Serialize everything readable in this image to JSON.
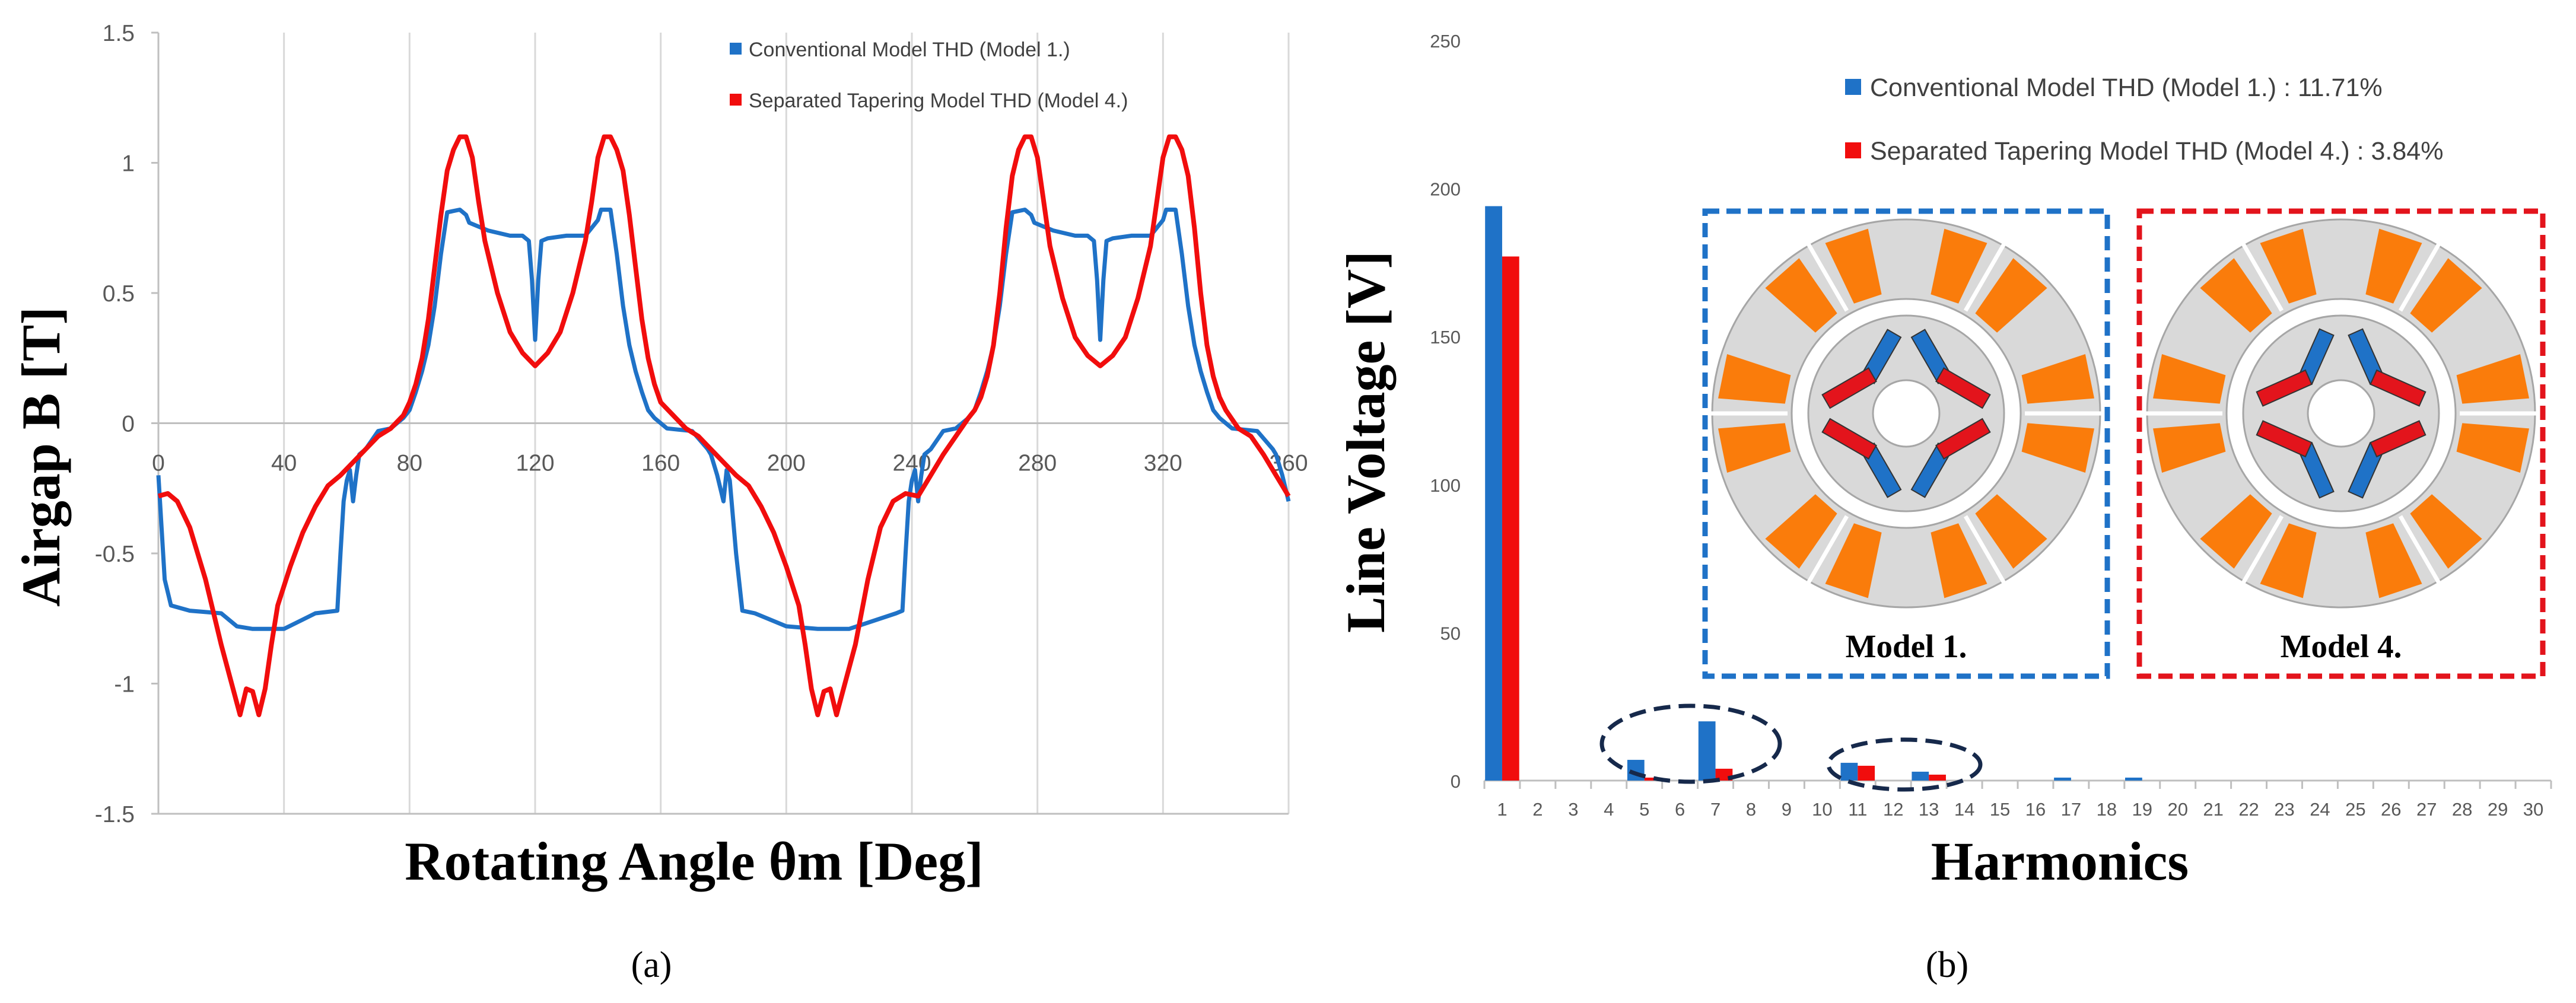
{
  "colors": {
    "model1": "#1f72c7",
    "model4": "#f10d0d",
    "grid": "#d9d9d9",
    "axis": "#bfbfbf",
    "stator": "#d9d9d9",
    "rotor": "#d9d9d9",
    "coil": "#fa7c0b",
    "magnet_blue": "#1f72c7",
    "magnet_red": "#e3141c",
    "dash_blue": "#1f72c7",
    "dash_red": "#e3141c",
    "ellipse": "#16294b"
  },
  "panel_a_label": "(a)",
  "panel_b_label": "(b)",
  "chart_data": [
    {
      "type": "line",
      "xlabel": "Rotating Angle θm [Deg]",
      "ylabel": "Airgap B [T]",
      "xlim": [
        0,
        360
      ],
      "ylim": [
        -1.5,
        1.5
      ],
      "xticks": [
        "0",
        "40",
        "80",
        "120",
        "160",
        "200",
        "240",
        "280",
        "320",
        "360"
      ],
      "yticks": [
        "1.5",
        "1",
        "0.5",
        "0",
        "-0.5",
        "-1",
        "-1.5"
      ],
      "grid": "vertical",
      "legend_position": "top-right",
      "series": [
        {
          "name": "Conventional Model THD (Model 1.)",
          "color": "#1f72c7",
          "x": [
            0,
            2,
            4,
            10,
            20,
            25,
            30,
            40,
            50,
            57,
            58,
            59,
            60,
            61,
            62,
            63,
            64,
            66,
            70,
            74,
            78,
            80,
            82,
            84,
            86,
            88,
            90,
            92,
            96,
            98,
            99,
            105,
            112,
            116,
            118,
            119,
            120,
            121,
            122,
            124,
            130,
            136,
            140,
            141,
            144,
            146,
            148,
            150,
            152,
            154,
            156,
            158,
            162,
            170,
            175,
            176,
            178,
            180,
            181,
            182,
            184,
            186,
            190,
            200,
            210,
            220,
            235,
            237,
            238,
            239,
            240,
            241,
            242,
            243,
            244,
            246,
            250,
            254,
            258,
            260,
            262,
            264,
            266,
            268,
            270,
            272,
            276,
            278,
            279,
            285,
            292,
            296,
            298,
            299,
            300,
            301,
            302,
            304,
            310,
            316,
            320,
            321,
            324,
            326,
            328,
            330,
            332,
            334,
            336,
            338,
            342,
            350,
            355,
            356,
            358,
            360
          ],
          "y": [
            -0.2,
            -0.6,
            -0.7,
            -0.72,
            -0.73,
            -0.78,
            -0.79,
            -0.79,
            -0.73,
            -0.72,
            -0.5,
            -0.3,
            -0.22,
            -0.18,
            -0.3,
            -0.2,
            -0.12,
            -0.1,
            -0.03,
            -0.02,
            0.02,
            0.05,
            0.12,
            0.2,
            0.3,
            0.45,
            0.65,
            0.81,
            0.82,
            0.8,
            0.77,
            0.74,
            0.72,
            0.72,
            0.7,
            0.55,
            0.32,
            0.55,
            0.7,
            0.71,
            0.72,
            0.72,
            0.78,
            0.82,
            0.82,
            0.65,
            0.45,
            0.3,
            0.2,
            0.12,
            0.05,
            0.02,
            -0.02,
            -0.03,
            -0.1,
            -0.12,
            -0.2,
            -0.3,
            -0.18,
            -0.22,
            -0.5,
            -0.72,
            -0.73,
            -0.78,
            -0.79,
            -0.79,
            -0.73,
            -0.72,
            -0.5,
            -0.3,
            -0.22,
            -0.18,
            -0.3,
            -0.2,
            -0.12,
            -0.1,
            -0.03,
            -0.02,
            0.02,
            0.05,
            0.12,
            0.2,
            0.3,
            0.45,
            0.65,
            0.81,
            0.82,
            0.8,
            0.77,
            0.74,
            0.72,
            0.72,
            0.7,
            0.55,
            0.32,
            0.55,
            0.7,
            0.71,
            0.72,
            0.72,
            0.78,
            0.82,
            0.82,
            0.65,
            0.45,
            0.3,
            0.2,
            0.12,
            0.05,
            0.02,
            -0.02,
            -0.03,
            -0.1,
            -0.12,
            -0.2,
            -0.3
          ]
        },
        {
          "name": "Separated Tapering Model THD (Model 4.)",
          "color": "#f10d0d",
          "x": [
            0,
            3,
            6,
            10,
            15,
            20,
            24,
            26,
            28,
            30,
            32,
            34,
            36,
            38,
            42,
            46,
            50,
            54,
            58,
            62,
            66,
            70,
            74,
            78,
            80,
            82,
            84,
            86,
            88,
            90,
            92,
            94,
            96,
            98,
            100,
            102,
            104,
            108,
            112,
            116,
            120,
            124,
            128,
            132,
            136,
            138,
            140,
            142,
            144,
            146,
            148,
            150,
            152,
            154,
            156,
            158,
            160,
            164,
            168,
            172,
            176,
            180,
            184,
            188,
            192,
            196,
            200,
            204,
            206,
            208,
            210,
            212,
            214,
            216,
            218,
            222,
            226,
            230,
            234,
            238,
            242,
            246,
            250,
            254,
            258,
            260,
            262,
            264,
            266,
            268,
            270,
            272,
            274,
            276,
            278,
            280,
            282,
            284,
            288,
            292,
            296,
            300,
            304,
            308,
            312,
            316,
            318,
            320,
            322,
            324,
            326,
            328,
            330,
            332,
            334,
            336,
            338,
            340,
            344,
            348,
            352,
            356,
            360
          ],
          "y": [
            -0.28,
            -0.27,
            -0.3,
            -0.4,
            -0.6,
            -0.85,
            -1.03,
            -1.12,
            -1.02,
            -1.03,
            -1.12,
            -1.02,
            -0.85,
            -0.7,
            -0.55,
            -0.42,
            -0.32,
            -0.24,
            -0.2,
            -0.15,
            -0.1,
            -0.05,
            -0.02,
            0.03,
            0.08,
            0.15,
            0.25,
            0.4,
            0.6,
            0.8,
            0.97,
            1.05,
            1.1,
            1.1,
            1.02,
            0.85,
            0.7,
            0.5,
            0.35,
            0.27,
            0.22,
            0.27,
            0.35,
            0.5,
            0.7,
            0.85,
            1.02,
            1.1,
            1.1,
            1.05,
            0.97,
            0.8,
            0.6,
            0.4,
            0.25,
            0.15,
            0.08,
            0.03,
            -0.02,
            -0.05,
            -0.1,
            -0.15,
            -0.2,
            -0.24,
            -0.32,
            -0.42,
            -0.55,
            -0.7,
            -0.85,
            -1.02,
            -1.12,
            -1.03,
            -1.02,
            -1.12,
            -1.03,
            -0.85,
            -0.6,
            -0.4,
            -0.3,
            -0.27,
            -0.28,
            -0.2,
            -0.12,
            -0.05,
            0.02,
            0.05,
            0.1,
            0.18,
            0.3,
            0.5,
            0.75,
            0.95,
            1.05,
            1.1,
            1.1,
            1.02,
            0.85,
            0.68,
            0.48,
            0.33,
            0.26,
            0.22,
            0.26,
            0.33,
            0.48,
            0.68,
            0.85,
            1.02,
            1.1,
            1.1,
            1.05,
            0.95,
            0.75,
            0.5,
            0.3,
            0.18,
            0.1,
            0.05,
            -0.02,
            -0.05,
            -0.12,
            -0.2,
            -0.28
          ]
        }
      ]
    },
    {
      "type": "bar",
      "xlabel": "Harmonics",
      "ylabel": "Line Voltage [V]",
      "ylim": [
        0,
        250
      ],
      "yticks": [
        "250",
        "200",
        "150",
        "100",
        "50",
        "0"
      ],
      "categories": [
        "1",
        "2",
        "3",
        "4",
        "5",
        "6",
        "7",
        "8",
        "9",
        "10",
        "11",
        "12",
        "13",
        "14",
        "15",
        "16",
        "17",
        "18",
        "19",
        "20",
        "21",
        "22",
        "23",
        "24",
        "25",
        "26",
        "27",
        "28",
        "29",
        "30"
      ],
      "grid": "none",
      "legend_position": "top-center",
      "series": [
        {
          "name": "Conventional Model THD (Model 1.) : 11.71%",
          "color": "#1f72c7",
          "values": [
            194,
            0,
            0,
            0,
            7,
            0,
            20,
            0,
            0,
            0,
            6,
            0,
            3,
            0,
            0,
            0,
            1,
            0,
            1,
            0,
            0,
            0,
            0,
            0,
            0,
            0,
            0,
            0,
            0,
            0
          ]
        },
        {
          "name": "Separated Tapering Model THD (Model 4.) : 3.84%",
          "color": "#f10d0d",
          "values": [
            177,
            0,
            0,
            0,
            1,
            0,
            4,
            0,
            0,
            0,
            5,
            0,
            2,
            0,
            0,
            0,
            0,
            0,
            0,
            0,
            0,
            0,
            0,
            0,
            0,
            0,
            0,
            0,
            0,
            0
          ]
        }
      ],
      "inset_labels": [
        "Model 1.",
        "Model 4."
      ]
    }
  ]
}
